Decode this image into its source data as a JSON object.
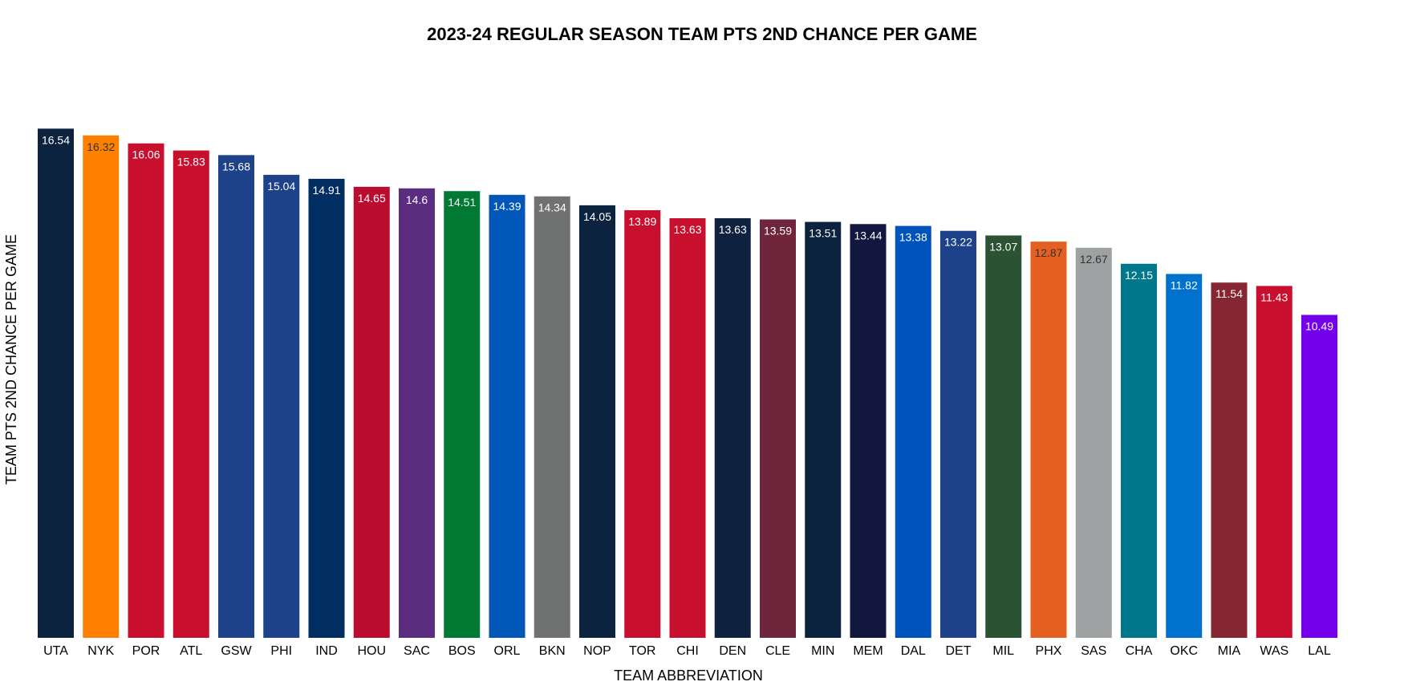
{
  "chart_data": {
    "type": "bar",
    "title": "2023-24 REGULAR SEASON TEAM PTS 2ND CHANCE PER GAME",
    "xlabel": "TEAM ABBREVIATION",
    "ylabel": "TEAM PTS 2ND CHANCE PER GAME",
    "ylim": [
      0,
      17.2
    ],
    "grid": false,
    "categories": [
      "UTA",
      "NYK",
      "POR",
      "ATL",
      "GSW",
      "PHI",
      "IND",
      "HOU",
      "SAC",
      "BOS",
      "ORL",
      "BKN",
      "NOP",
      "TOR",
      "CHI",
      "DEN",
      "CLE",
      "MIN",
      "MEM",
      "DAL",
      "DET",
      "MIL",
      "PHX",
      "SAS",
      "CHA",
      "OKC",
      "MIA",
      "WAS",
      "LAL"
    ],
    "values": [
      16.54,
      16.32,
      16.06,
      15.83,
      15.68,
      15.04,
      14.91,
      14.65,
      14.6,
      14.51,
      14.39,
      14.34,
      14.05,
      13.89,
      13.63,
      13.63,
      13.59,
      13.51,
      13.44,
      13.38,
      13.22,
      13.07,
      12.87,
      12.67,
      12.15,
      11.82,
      11.54,
      11.43,
      10.49
    ],
    "data_labels": [
      "16.54",
      "16.32",
      "16.06",
      "15.83",
      "15.68",
      "15.04",
      "14.91",
      "14.65",
      "14.6",
      "14.51",
      "14.39",
      "14.34",
      "14.05",
      "13.89",
      "13.63",
      "13.63",
      "13.59",
      "13.51",
      "13.44",
      "13.38",
      "13.22",
      "13.07",
      "12.87",
      "12.67",
      "12.15",
      "11.82",
      "11.54",
      "11.43",
      "10.49"
    ],
    "colors": [
      "#0C2340",
      "#FF8000",
      "#C8102E",
      "#C8102E",
      "#1D428A",
      "#1D428A",
      "#002D62",
      "#BA0C2F",
      "#5A2D81",
      "#007A33",
      "#0057B8",
      "#707271",
      "#0C2340",
      "#C8102E",
      "#C8102E",
      "#0E2240",
      "#6F263D",
      "#0C2340",
      "#12173F",
      "#0053BC",
      "#1D428A",
      "#2C5234",
      "#E56020",
      "#9EA2A2",
      "#00788C",
      "#0072CE",
      "#862633",
      "#C8102E",
      "#7500EB"
    ],
    "label_colors": [
      "#ffffff",
      "#333333",
      "#ffffff",
      "#ffffff",
      "#ffffff",
      "#ffffff",
      "#ffffff",
      "#ffffff",
      "#ffffff",
      "#ffffff",
      "#ffffff",
      "#ffffff",
      "#ffffff",
      "#ffffff",
      "#ffffff",
      "#ffffff",
      "#ffffff",
      "#ffffff",
      "#ffffff",
      "#ffffff",
      "#ffffff",
      "#ffffff",
      "#333333",
      "#333333",
      "#ffffff",
      "#ffffff",
      "#ffffff",
      "#ffffff",
      "#ffffff"
    ]
  }
}
